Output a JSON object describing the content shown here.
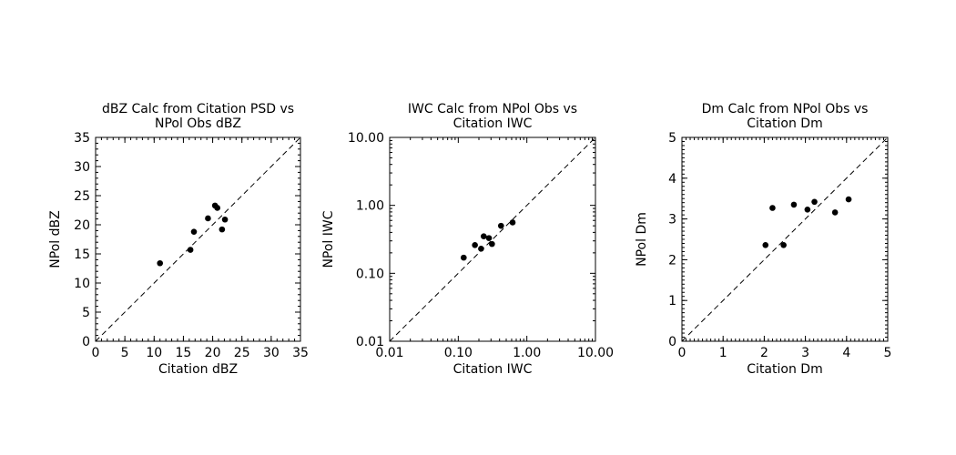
{
  "chart_data": [
    {
      "type": "scatter",
      "title": [
        "dBZ Calc from Citation PSD vs",
        "NPol Obs dBZ"
      ],
      "xlabel": "Citation dBZ",
      "ylabel": "NPol dBZ",
      "xscale": "linear",
      "yscale": "linear",
      "xlim": [
        0,
        35
      ],
      "ylim": [
        0,
        35
      ],
      "xticks": [
        0,
        5,
        10,
        15,
        20,
        25,
        30,
        35
      ],
      "yticks": [
        0,
        5,
        10,
        15,
        20,
        25,
        30,
        35
      ],
      "xtick_labels": [
        "0",
        "5",
        "10",
        "15",
        "20",
        "25",
        "30",
        "35"
      ],
      "ytick_labels": [
        "0",
        "5",
        "10",
        "15",
        "20",
        "25",
        "30",
        "35"
      ],
      "minor_step": 1,
      "reference_line": "1:1 dashed",
      "x": [
        11.0,
        16.2,
        16.8,
        19.2,
        20.4,
        20.8,
        21.6,
        22.1
      ],
      "y": [
        13.4,
        15.7,
        18.8,
        21.1,
        23.3,
        22.9,
        19.2,
        20.9
      ]
    },
    {
      "type": "scatter",
      "title": [
        "IWC Calc from NPol Obs vs",
        "Citation IWC"
      ],
      "xlabel": "Citation IWC",
      "ylabel": "NPol IWC",
      "xscale": "log",
      "yscale": "log",
      "xlim": [
        0.01,
        10.0
      ],
      "ylim": [
        0.01,
        10.0
      ],
      "xticks": [
        0.01,
        0.1,
        1.0,
        10.0
      ],
      "yticks": [
        0.01,
        0.1,
        1.0,
        10.0
      ],
      "xtick_labels": [
        "0.01",
        "0.10",
        "1.00",
        "10.00"
      ],
      "ytick_labels": [
        "0.01",
        "0.10",
        "1.00",
        "10.00"
      ],
      "reference_line": "1:1 dashed",
      "x": [
        0.12,
        0.175,
        0.215,
        0.235,
        0.28,
        0.31,
        0.42,
        0.62
      ],
      "y": [
        0.17,
        0.26,
        0.23,
        0.35,
        0.33,
        0.27,
        0.5,
        0.56
      ]
    },
    {
      "type": "scatter",
      "title": [
        "Dm Calc from NPol Obs vs",
        "Citation Dm"
      ],
      "xlabel": "Citation Dm",
      "ylabel": "NPol Dm",
      "xscale": "linear",
      "yscale": "linear",
      "xlim": [
        0,
        5
      ],
      "ylim": [
        0,
        5
      ],
      "xticks": [
        0,
        1,
        2,
        3,
        4,
        5
      ],
      "yticks": [
        0,
        1,
        2,
        3,
        4,
        5
      ],
      "xtick_labels": [
        "0",
        "1",
        "2",
        "3",
        "4",
        "5"
      ],
      "ytick_labels": [
        "0",
        "1",
        "2",
        "3",
        "4",
        "5"
      ],
      "minor_step": 0.1,
      "reference_line": "1:1 dashed",
      "x": [
        2.03,
        2.2,
        2.47,
        2.72,
        3.05,
        3.22,
        3.72,
        4.05
      ],
      "y": [
        2.36,
        3.27,
        2.36,
        3.35,
        3.23,
        3.42,
        3.16,
        3.48
      ]
    }
  ]
}
